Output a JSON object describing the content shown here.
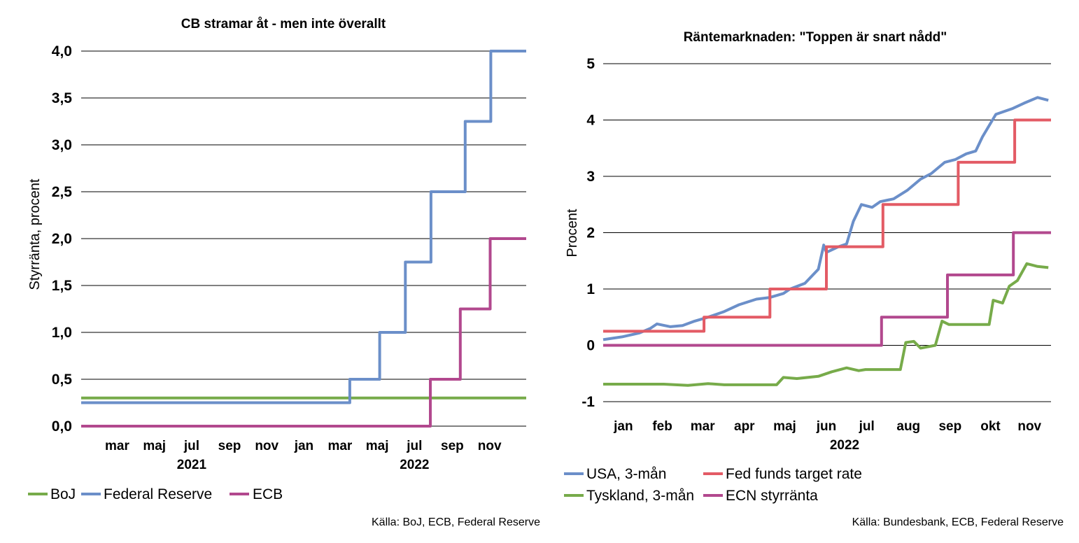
{
  "chart_data": [
    {
      "type": "line",
      "title": "CB stramar åt - men inte överallt",
      "ylabel": "Styrränta, procent",
      "ylim": [
        0,
        4
      ],
      "yticks": [
        "0,0",
        "0,5",
        "1,0",
        "1,5",
        "2,0",
        "2,5",
        "3,0",
        "3,5",
        "4,0"
      ],
      "ytick_values": [
        0,
        0.5,
        1,
        1.5,
        2,
        2.5,
        3,
        3.5,
        4
      ],
      "x_start": "2021-01-01",
      "x_end": "2022-12-31",
      "xticks": [
        {
          "label": "mar",
          "date": "2021-03-01"
        },
        {
          "label": "maj",
          "date": "2021-05-01"
        },
        {
          "label": "jul",
          "date": "2021-07-01"
        },
        {
          "label": "sep",
          "date": "2021-09-01"
        },
        {
          "label": "nov",
          "date": "2021-11-01"
        },
        {
          "label": "jan",
          "date": "2022-01-01"
        },
        {
          "label": "mar",
          "date": "2022-03-01"
        },
        {
          "label": "maj",
          "date": "2022-05-01"
        },
        {
          "label": "jul",
          "date": "2022-07-01"
        },
        {
          "label": "sep",
          "date": "2022-09-01"
        },
        {
          "label": "nov",
          "date": "2022-11-01"
        }
      ],
      "years": [
        {
          "label": "2021",
          "date": "2021-07-01"
        },
        {
          "label": "2022",
          "date": "2022-07-01"
        }
      ],
      "grid": true,
      "legend_position": "bottom",
      "series": [
        {
          "name": "BoJ",
          "color": "#77AB4A",
          "step": true,
          "points": [
            [
              "2021-01-01",
              0.3
            ],
            [
              "2022-12-31",
              0.3
            ]
          ]
        },
        {
          "name": "Federal Reserve",
          "color": "#6B8FC9",
          "step": true,
          "points": [
            [
              "2021-01-01",
              0.25
            ],
            [
              "2022-03-17",
              0.5
            ],
            [
              "2022-05-05",
              1.0
            ],
            [
              "2022-06-16",
              1.75
            ],
            [
              "2022-07-28",
              2.5
            ],
            [
              "2022-09-22",
              3.25
            ],
            [
              "2022-11-03",
              4.0
            ],
            [
              "2022-12-31",
              4.0
            ]
          ]
        },
        {
          "name": "ECB",
          "color": "#B2488E",
          "step": true,
          "points": [
            [
              "2021-01-01",
              0.0
            ],
            [
              "2022-07-27",
              0.5
            ],
            [
              "2022-09-14",
              1.25
            ],
            [
              "2022-11-02",
              2.0
            ],
            [
              "2022-12-31",
              2.0
            ]
          ]
        }
      ],
      "source": "Källa: BoJ, ECB, Federal Reserve"
    },
    {
      "type": "line",
      "title": "Räntemarknaden: \"Toppen är snart nådd\"",
      "xlabel": "2022",
      "ylabel": "Procent",
      "ylim": [
        -1,
        5
      ],
      "yticks": [
        "-1",
        "0",
        "1",
        "2",
        "3",
        "4",
        "5"
      ],
      "ytick_values": [
        -1,
        0,
        1,
        2,
        3,
        4,
        5
      ],
      "x_start": "2022-01-01",
      "x_end": "2022-11-30",
      "xticks": [
        {
          "label": "jan",
          "date": "2022-01-16"
        },
        {
          "label": "feb",
          "date": "2022-02-14"
        },
        {
          "label": "mar",
          "date": "2022-03-16"
        },
        {
          "label": "apr",
          "date": "2022-04-16"
        },
        {
          "label": "maj",
          "date": "2022-05-16"
        },
        {
          "label": "jun",
          "date": "2022-06-16"
        },
        {
          "label": "jul",
          "date": "2022-07-16"
        },
        {
          "label": "aug",
          "date": "2022-08-16"
        },
        {
          "label": "sep",
          "date": "2022-09-16"
        },
        {
          "label": "okt",
          "date": "2022-10-16"
        },
        {
          "label": "nov",
          "date": "2022-11-14"
        }
      ],
      "grid": true,
      "legend_position": "bottom",
      "series": [
        {
          "name": "USA, 3-mån",
          "color": "#6B8FC9",
          "step": false,
          "points": [
            [
              "2022-01-01",
              0.1
            ],
            [
              "2022-01-15",
              0.15
            ],
            [
              "2022-01-28",
              0.22
            ],
            [
              "2022-02-05",
              0.3
            ],
            [
              "2022-02-10",
              0.38
            ],
            [
              "2022-02-20",
              0.33
            ],
            [
              "2022-03-01",
              0.35
            ],
            [
              "2022-03-10",
              0.43
            ],
            [
              "2022-03-20",
              0.5
            ],
            [
              "2022-04-01",
              0.6
            ],
            [
              "2022-04-12",
              0.72
            ],
            [
              "2022-04-25",
              0.82
            ],
            [
              "2022-05-05",
              0.85
            ],
            [
              "2022-05-15",
              0.92
            ],
            [
              "2022-05-20",
              1.0
            ],
            [
              "2022-05-31",
              1.1
            ],
            [
              "2022-06-10",
              1.35
            ],
            [
              "2022-06-14",
              1.78
            ],
            [
              "2022-06-16",
              1.65
            ],
            [
              "2022-06-25",
              1.75
            ],
            [
              "2022-07-01",
              1.8
            ],
            [
              "2022-07-06",
              2.2
            ],
            [
              "2022-07-12",
              2.5
            ],
            [
              "2022-07-20",
              2.45
            ],
            [
              "2022-07-26",
              2.55
            ],
            [
              "2022-08-05",
              2.6
            ],
            [
              "2022-08-15",
              2.75
            ],
            [
              "2022-08-25",
              2.95
            ],
            [
              "2022-09-02",
              3.05
            ],
            [
              "2022-09-12",
              3.25
            ],
            [
              "2022-09-20",
              3.3
            ],
            [
              "2022-09-28",
              3.4
            ],
            [
              "2022-10-05",
              3.45
            ],
            [
              "2022-10-10",
              3.7
            ],
            [
              "2022-10-20",
              4.1
            ],
            [
              "2022-11-01",
              4.2
            ],
            [
              "2022-11-10",
              4.3
            ],
            [
              "2022-11-20",
              4.4
            ],
            [
              "2022-11-28",
              4.35
            ]
          ]
        },
        {
          "name": "Fed funds target rate",
          "color": "#E35B65",
          "step": true,
          "points": [
            [
              "2022-01-01",
              0.25
            ],
            [
              "2022-03-17",
              0.5
            ],
            [
              "2022-05-05",
              1.0
            ],
            [
              "2022-06-16",
              1.75
            ],
            [
              "2022-07-28",
              2.5
            ],
            [
              "2022-09-22",
              3.25
            ],
            [
              "2022-11-03",
              4.0
            ],
            [
              "2022-11-30",
              4.0
            ]
          ]
        },
        {
          "name": "Tyskland, 3-mån",
          "color": "#77AB4A",
          "step": false,
          "points": [
            [
              "2022-01-01",
              -0.69
            ],
            [
              "2022-02-15",
              -0.69
            ],
            [
              "2022-03-05",
              -0.71
            ],
            [
              "2022-03-20",
              -0.68
            ],
            [
              "2022-04-01",
              -0.7
            ],
            [
              "2022-05-10",
              -0.7
            ],
            [
              "2022-05-15",
              -0.57
            ],
            [
              "2022-05-25",
              -0.59
            ],
            [
              "2022-06-10",
              -0.55
            ],
            [
              "2022-06-20",
              -0.47
            ],
            [
              "2022-07-01",
              -0.4
            ],
            [
              "2022-07-10",
              -0.45
            ],
            [
              "2022-07-15",
              -0.43
            ],
            [
              "2022-08-10",
              -0.43
            ],
            [
              "2022-08-14",
              0.05
            ],
            [
              "2022-08-20",
              0.07
            ],
            [
              "2022-08-25",
              -0.05
            ],
            [
              "2022-09-05",
              0.0
            ],
            [
              "2022-09-10",
              0.43
            ],
            [
              "2022-09-15",
              0.37
            ],
            [
              "2022-10-15",
              0.37
            ],
            [
              "2022-10-18",
              0.8
            ],
            [
              "2022-10-25",
              0.75
            ],
            [
              "2022-10-30",
              1.05
            ],
            [
              "2022-11-05",
              1.15
            ],
            [
              "2022-11-12",
              1.45
            ],
            [
              "2022-11-20",
              1.4
            ],
            [
              "2022-11-28",
              1.38
            ]
          ]
        },
        {
          "name": "ECN styrränta",
          "color": "#B2488E",
          "step": true,
          "points": [
            [
              "2022-01-01",
              0.0
            ],
            [
              "2022-07-27",
              0.5
            ],
            [
              "2022-09-14",
              1.25
            ],
            [
              "2022-11-02",
              2.0
            ],
            [
              "2022-11-30",
              2.0
            ]
          ]
        }
      ],
      "source": "Källa: Bundesbank, ECB, Federal Reserve"
    }
  ]
}
